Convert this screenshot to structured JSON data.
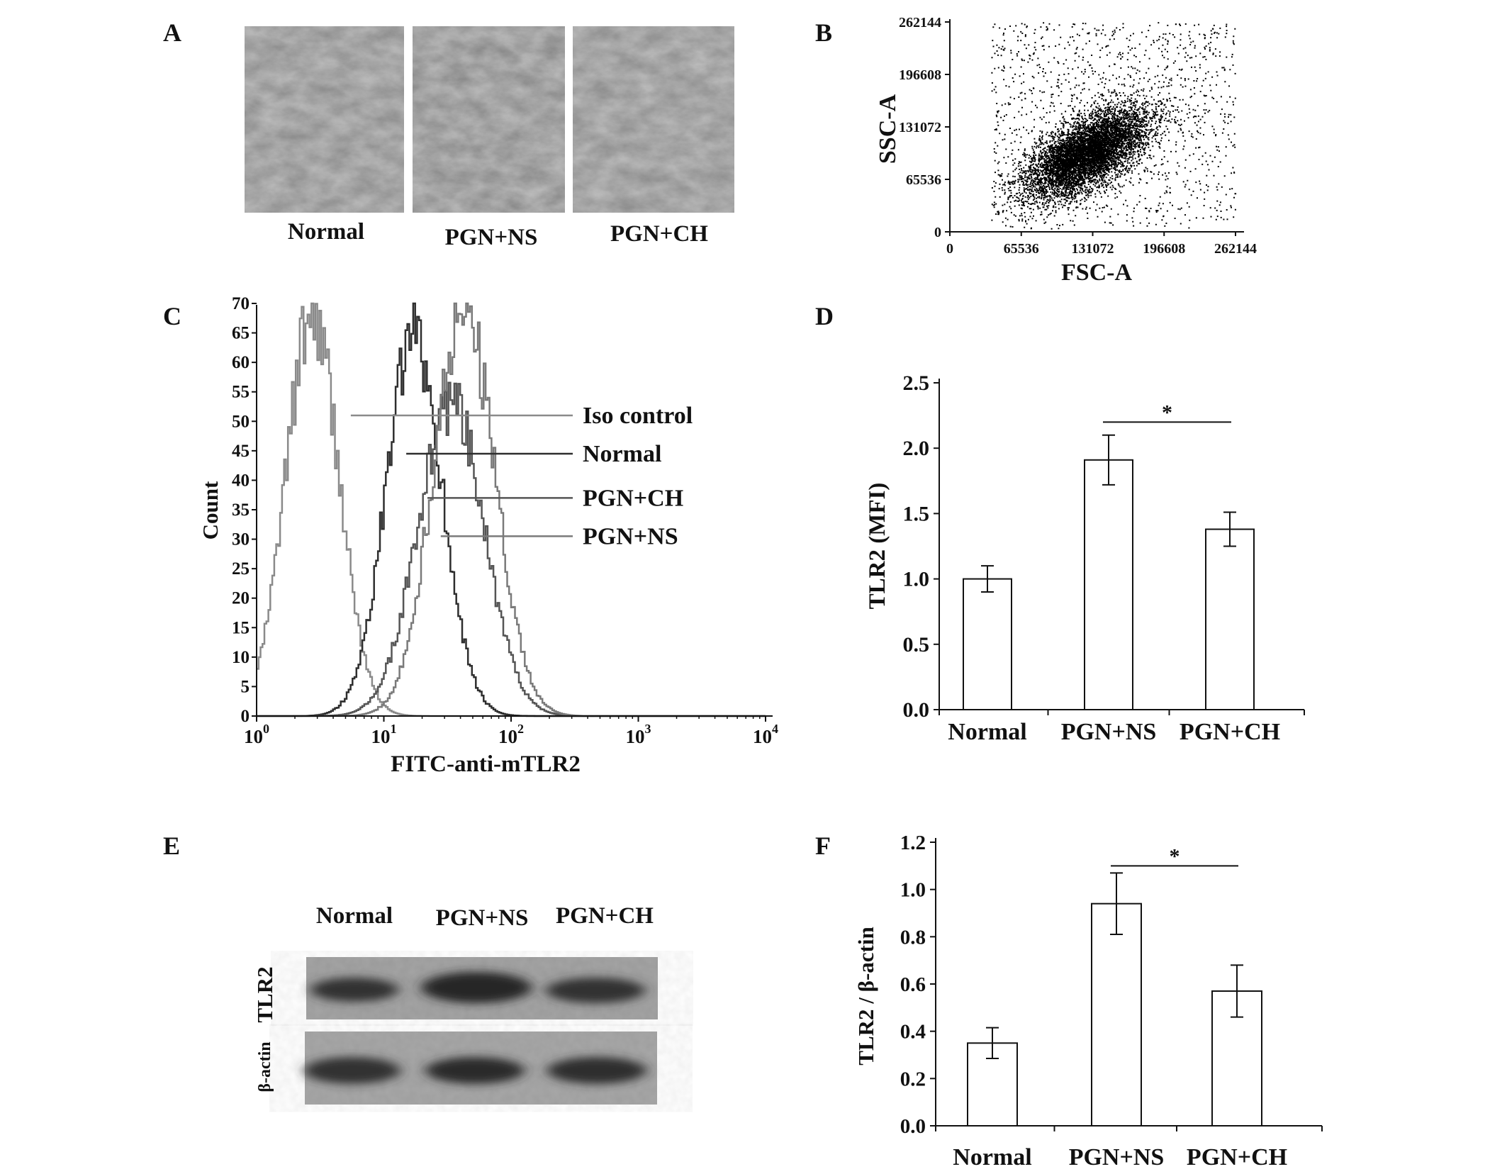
{
  "panel_labels": [
    "A",
    "B",
    "C",
    "D",
    "E",
    "F"
  ],
  "panel_a": {
    "captions": [
      "Normal",
      "PGN+NS",
      "PGN+CH"
    ]
  },
  "chart_data": [
    {
      "panel": "B",
      "type": "scatter",
      "xlabel": "FSC-A",
      "ylabel": "SSC-A",
      "xlim": [
        0,
        262144
      ],
      "ylim": [
        0,
        262144
      ],
      "xticks": [
        "0",
        "65536",
        "131072",
        "196608",
        "262144"
      ],
      "yticks": [
        "0",
        "65536",
        "131072",
        "196608",
        "262144"
      ],
      "population": {
        "center_x": 125000,
        "center_y": 98000,
        "spread_major": 36000,
        "spread_minor": 17000,
        "tilt_deg": 45,
        "n_dense": 8000,
        "n_sparse": 1200
      }
    },
    {
      "panel": "C",
      "type": "line",
      "xlabel": "FITC-anti-mTLR2",
      "ylabel": "Count",
      "x_scale": "log",
      "xlim": [
        1,
        10000
      ],
      "ylim": [
        0,
        70
      ],
      "xticks": [
        {
          "base": "10",
          "exp": "0"
        },
        {
          "base": "10",
          "exp": "1"
        },
        {
          "base": "10",
          "exp": "2"
        },
        {
          "base": "10",
          "exp": "3"
        },
        {
          "base": "10",
          "exp": "4"
        }
      ],
      "yticks": [
        "0",
        "5",
        "10",
        "15",
        "20",
        "25",
        "30",
        "35",
        "40",
        "45",
        "50",
        "55",
        "60",
        "65",
        "70"
      ],
      "series": [
        {
          "name": "Iso control",
          "color": "#8a8a8a",
          "peak_x": 2.7,
          "peak_y": 68,
          "sigma_log": 0.21,
          "label_y": 51,
          "label_x_start": 5.5
        },
        {
          "name": "Normal",
          "color": "#2e2e2e",
          "peak_x": 17,
          "peak_y": 64,
          "sigma_log": 0.22,
          "label_y": 44.5,
          "label_x_start": 15
        },
        {
          "name": "PGN+CH",
          "color": "#555555",
          "peak_x": 33,
          "peak_y": 53,
          "sigma_log": 0.26,
          "label_y": 37,
          "label_x_start": 22
        },
        {
          "name": "PGN+NS",
          "color": "#7a7a7a",
          "peak_x": 42,
          "peak_y": 69,
          "sigma_log": 0.24,
          "label_y": 30.5,
          "label_x_start": 28
        }
      ]
    },
    {
      "panel": "D",
      "type": "bar",
      "ylabel": "TLR2 (MFI)",
      "categories": [
        "Normal",
        "PGN+NS",
        "PGN+CH"
      ],
      "values": [
        1.0,
        1.91,
        1.38
      ],
      "errors": [
        0.1,
        0.19,
        0.13
      ],
      "ylim": [
        0,
        2.5
      ],
      "yticks": [
        "0.0",
        "0.5",
        "1.0",
        "1.5",
        "2.0",
        "2.5"
      ],
      "significance": {
        "between": [
          1,
          2
        ],
        "y": 2.2,
        "label": "*"
      }
    },
    {
      "panel": "F",
      "type": "bar",
      "ylabel": "TLR2 / β-actin",
      "categories": [
        "Normal",
        "PGN+NS",
        "PGN+CH"
      ],
      "values": [
        0.35,
        0.94,
        0.57
      ],
      "errors": [
        0.065,
        0.13,
        0.11
      ],
      "ylim": [
        0,
        1.2
      ],
      "yticks": [
        "0.0",
        "0.2",
        "0.4",
        "0.6",
        "0.8",
        "1.0",
        "1.2"
      ],
      "significance": {
        "between": [
          1,
          2
        ],
        "y": 1.1,
        "label": "*"
      }
    }
  ],
  "panel_e": {
    "lane_labels": [
      "Normal",
      "PGN+NS",
      "PGN+CH"
    ],
    "row_labels": [
      "TLR2",
      "β-actin"
    ]
  }
}
